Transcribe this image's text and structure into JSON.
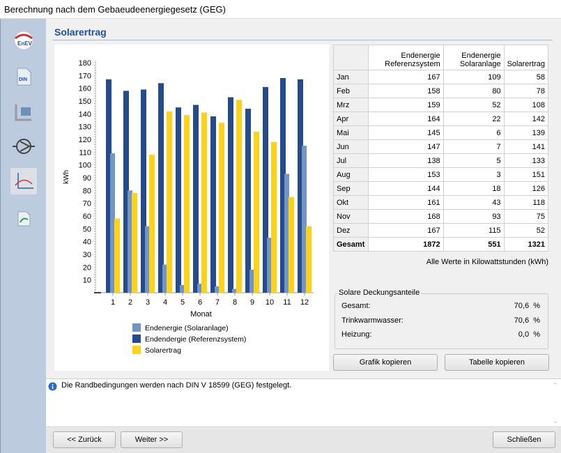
{
  "window": {
    "title": "Berechnung nach dem Gebaeudeenergiegesetz (GEG)"
  },
  "sidebar": {
    "items": [
      {
        "icon": "enev-icon",
        "label": "EnEV"
      },
      {
        "icon": "din-icon",
        "label": "DIN"
      },
      {
        "icon": "building-icon"
      },
      {
        "icon": "pump-icon"
      },
      {
        "icon": "chart-curve-icon"
      },
      {
        "icon": "report-icon"
      }
    ]
  },
  "page": {
    "title": "Solarertrag"
  },
  "table": {
    "headers": [
      "",
      "Endenergie Referenzsystem",
      "Endenergie Solaranlage",
      "Solarertrag"
    ],
    "rows": [
      [
        "Jan",
        "167",
        "109",
        "58"
      ],
      [
        "Feb",
        "158",
        "80",
        "78"
      ],
      [
        "Mrz",
        "159",
        "52",
        "108"
      ],
      [
        "Apr",
        "164",
        "22",
        "142"
      ],
      [
        "Mai",
        "145",
        "6",
        "139"
      ],
      [
        "Jun",
        "147",
        "7",
        "141"
      ],
      [
        "Jul",
        "138",
        "5",
        "133"
      ],
      [
        "Aug",
        "153",
        "3",
        "151"
      ],
      [
        "Sep",
        "144",
        "18",
        "126"
      ],
      [
        "Okt",
        "161",
        "43",
        "118"
      ],
      [
        "Nov",
        "168",
        "93",
        "75"
      ],
      [
        "Dez",
        "167",
        "115",
        "52"
      ]
    ],
    "total": [
      "Gesamt",
      "1872",
      "551",
      "1321"
    ]
  },
  "unit_note": "Alle Werte in Kilowattstunden (kWh)",
  "coverage": {
    "title": "Solare Deckungsanteile",
    "rows": [
      {
        "label": "Gesamt:",
        "value": "70,6",
        "unit": "%"
      },
      {
        "label": "Trinkwarmwasser:",
        "value": "70,6",
        "unit": "%"
      },
      {
        "label": "Heizung:",
        "value": "0,0",
        "unit": "%"
      }
    ]
  },
  "buttons": {
    "copy_chart": "Grafik kopieren",
    "copy_table": "Tabelle kopieren",
    "back": "<< Zurück",
    "next": "Weiter >>",
    "close": "Schließen"
  },
  "info": {
    "text": "Die Randbedingungen werden nach DIN V 18599 (GEG) festgelegt."
  },
  "chart_data": {
    "type": "bar",
    "xlabel": "Monat",
    "ylabel": "kWh",
    "ylim": [
      0,
      180
    ],
    "yticks": [
      10,
      20,
      30,
      40,
      50,
      60,
      70,
      80,
      90,
      100,
      110,
      120,
      130,
      140,
      150,
      160,
      170,
      180
    ],
    "categories": [
      "1",
      "2",
      "3",
      "4",
      "5",
      "6",
      "7",
      "8",
      "9",
      "10",
      "11",
      "12"
    ],
    "series": [
      {
        "name": "Endendergie (Referenzsystem)",
        "color": "#254b8c",
        "values": [
          167,
          158,
          159,
          164,
          145,
          147,
          138,
          153,
          144,
          161,
          168,
          167
        ]
      },
      {
        "name": "Endenergie (Solaranlage)",
        "color": "#7395c6",
        "values": [
          109,
          80,
          52,
          22,
          6,
          7,
          5,
          3,
          18,
          43,
          93,
          115
        ]
      },
      {
        "name": "Solarertrag",
        "color": "#ffd21a",
        "values": [
          58,
          78,
          108,
          142,
          139,
          141,
          133,
          151,
          126,
          118,
          75,
          52
        ]
      }
    ],
    "legend_order": [
      1,
      0,
      2
    ],
    "legend_position": "bottom"
  }
}
